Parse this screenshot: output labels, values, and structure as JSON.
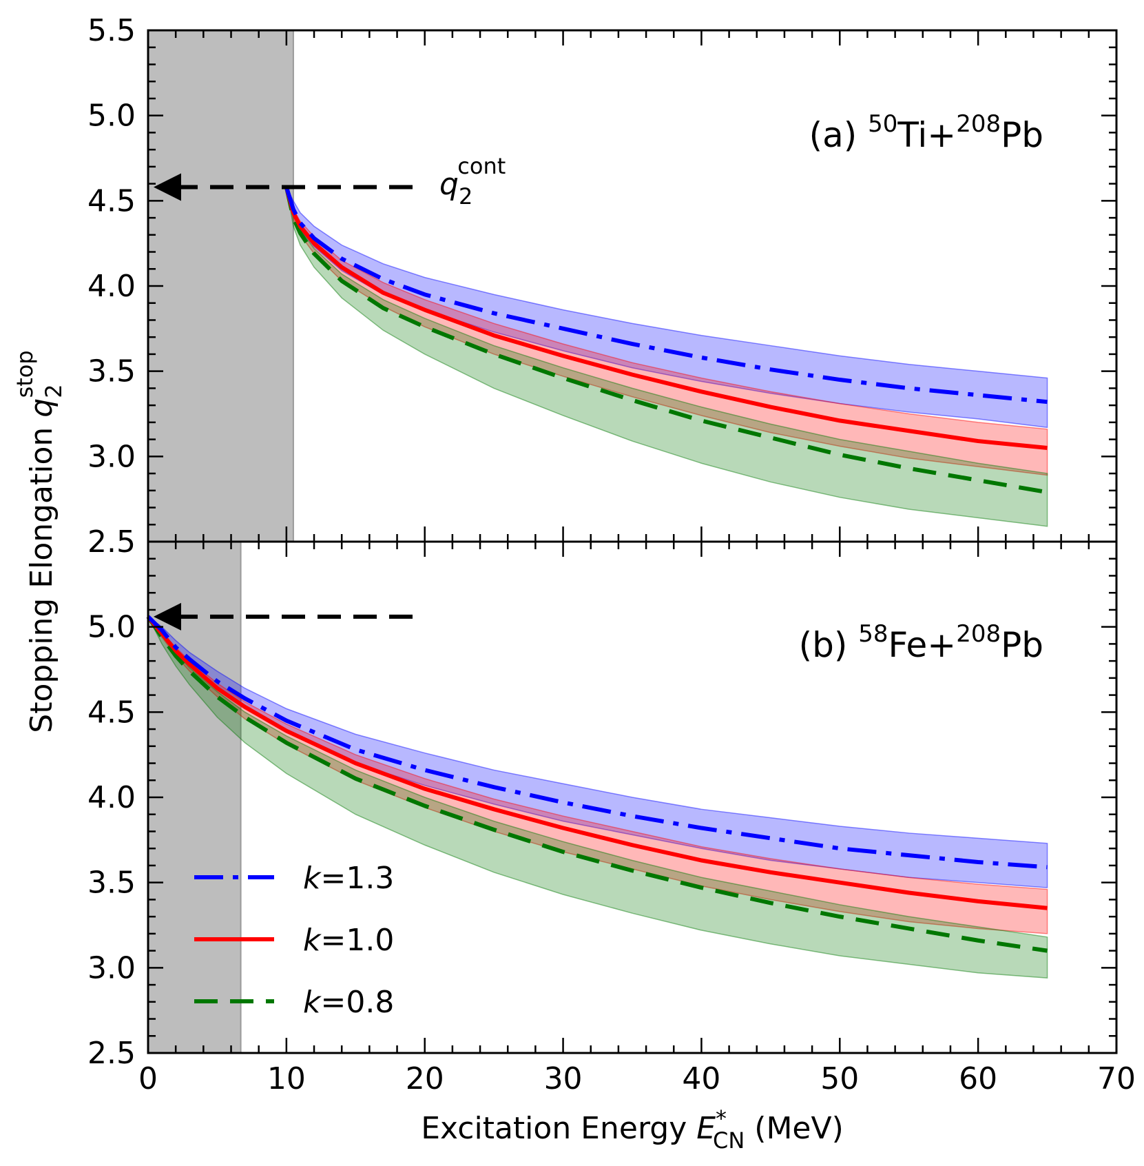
{
  "chart_data": {
    "type": "line",
    "title": "",
    "xlabel": {
      "prefix": "Excitation Energy ",
      "symbol": "E",
      "sup": "*",
      "sub": "CN",
      "suffix": " (MeV)"
    },
    "ylabel": {
      "prefix": "Stopping Elongation ",
      "symbol": "q",
      "sub": "2",
      "sup": "stop"
    },
    "xlim": [
      0,
      70
    ],
    "x_ticks": [
      0,
      10,
      20,
      30,
      40,
      50,
      60,
      70
    ],
    "x_tick_labels": [
      "0",
      "10",
      "20",
      "30",
      "40",
      "50",
      "60",
      "70"
    ],
    "legend": [
      {
        "name": "k=1.3",
        "symbol": "k",
        "text": "=1.3",
        "color": "#0000ff",
        "style": "dash-dot"
      },
      {
        "name": "k=1.0",
        "symbol": "k",
        "text": "=1.0",
        "color": "#ff0000",
        "style": "solid"
      },
      {
        "name": "k=0.8",
        "symbol": "k",
        "text": "=0.8",
        "color": "#007700",
        "style": "dashed"
      }
    ],
    "panels": [
      {
        "id": "a",
        "label": {
          "prefix": "(a) ",
          "iso1": "50",
          "el1": "Ti",
          "plus": "+",
          "iso2": "208",
          "el2": "Pb"
        },
        "ylim": [
          2.5,
          5.5
        ],
        "y_ticks": [
          2.5,
          3.0,
          3.5,
          4.0,
          4.5,
          5.0,
          5.5
        ],
        "y_tick_labels": [
          "2.5",
          "3.0",
          "3.5",
          "4.0",
          "4.5",
          "5.0",
          "5.5"
        ],
        "shaded_region_x": [
          0,
          10.5
        ],
        "q2_cont": 4.58,
        "q2_cont_label": {
          "symbol": "q",
          "sub": "2",
          "sup": "cont"
        },
        "arrow_x_range": [
          0,
          20
        ],
        "start_x": 10,
        "x": [
          10,
          10.5,
          11,
          12,
          14,
          17,
          20,
          25,
          30,
          35,
          40,
          45,
          50,
          55,
          60,
          65
        ],
        "series": [
          {
            "name": "k=1.3",
            "values": [
              4.58,
              4.45,
              4.37,
              4.28,
              4.16,
              4.04,
              3.95,
              3.84,
              3.75,
              3.66,
              3.58,
              3.51,
              3.45,
              3.4,
              3.36,
              3.32
            ],
            "band_upper": [
              4.58,
              4.5,
              4.43,
              4.35,
              4.24,
              4.13,
              4.05,
              3.95,
              3.86,
              3.78,
              3.71,
              3.65,
              3.59,
              3.54,
              3.5,
              3.46
            ],
            "band_lower": [
              4.58,
              4.41,
              4.33,
              4.23,
              4.09,
              3.95,
              3.86,
              3.73,
              3.62,
              3.52,
              3.44,
              3.37,
              3.31,
              3.26,
              3.22,
              3.17
            ]
          },
          {
            "name": "k=1.0",
            "values": [
              4.58,
              4.43,
              4.35,
              4.25,
              4.11,
              3.96,
              3.86,
              3.71,
              3.59,
              3.48,
              3.38,
              3.29,
              3.21,
              3.15,
              3.09,
              3.05
            ],
            "band_upper": [
              4.58,
              4.45,
              4.38,
              4.29,
              4.15,
              4.02,
              3.92,
              3.78,
              3.66,
              3.55,
              3.46,
              3.38,
              3.31,
              3.25,
              3.2,
              3.16
            ],
            "band_lower": [
              4.58,
              4.39,
              4.3,
              4.19,
              4.03,
              3.88,
              3.76,
              3.6,
              3.47,
              3.35,
              3.24,
              3.14,
              3.06,
              2.99,
              2.94,
              2.89
            ]
          },
          {
            "name": "k=0.8",
            "values": [
              4.58,
              4.4,
              4.31,
              4.19,
              4.03,
              3.87,
              3.76,
              3.6,
              3.46,
              3.33,
              3.21,
              3.11,
              3.01,
              2.93,
              2.86,
              2.79
            ],
            "band_upper": [
              4.58,
              4.41,
              4.33,
              4.22,
              4.07,
              3.92,
              3.81,
              3.65,
              3.52,
              3.4,
              3.29,
              3.19,
              3.1,
              3.03,
              2.96,
              2.9
            ],
            "band_lower": [
              4.58,
              4.35,
              4.24,
              4.11,
              3.93,
              3.74,
              3.6,
              3.4,
              3.24,
              3.09,
              2.96,
              2.85,
              2.76,
              2.69,
              2.64,
              2.59
            ]
          }
        ]
      },
      {
        "id": "b",
        "label": {
          "prefix": "(b) ",
          "iso1": "58",
          "el1": "Fe",
          "plus": "+",
          "iso2": "208",
          "el2": "Pb"
        },
        "ylim": [
          2.5,
          5.5
        ],
        "y_ticks": [
          2.5,
          3.0,
          3.5,
          4.0,
          4.5,
          5.0
        ],
        "y_tick_labels": [
          "2.5",
          "3.0",
          "3.5",
          "4.0",
          "4.5",
          "5.0"
        ],
        "shaded_region_x": [
          0,
          6.7
        ],
        "q2_cont": 5.06,
        "arrow_x_range": [
          0,
          20
        ],
        "start_x": 0,
        "x": [
          0,
          1,
          2,
          3,
          5,
          7,
          10,
          15,
          20,
          25,
          30,
          35,
          40,
          45,
          50,
          55,
          60,
          65
        ],
        "series": [
          {
            "name": "k=1.3",
            "values": [
              5.06,
              4.98,
              4.88,
              4.81,
              4.68,
              4.58,
              4.45,
              4.28,
              4.16,
              4.06,
              3.97,
              3.89,
              3.82,
              3.76,
              3.7,
              3.66,
              3.62,
              3.59
            ],
            "band_upper": [
              5.06,
              5.0,
              4.92,
              4.85,
              4.74,
              4.64,
              4.52,
              4.37,
              4.26,
              4.16,
              4.08,
              4.0,
              3.93,
              3.88,
              3.83,
              3.79,
              3.76,
              3.73
            ],
            "band_lower": [
              5.06,
              4.96,
              4.85,
              4.77,
              4.63,
              4.52,
              4.38,
              4.2,
              4.07,
              3.96,
              3.86,
              3.78,
              3.7,
              3.63,
              3.58,
              3.53,
              3.5,
              3.47
            ]
          },
          {
            "name": "k=1.0",
            "values": [
              5.06,
              4.96,
              4.86,
              4.78,
              4.64,
              4.53,
              4.39,
              4.2,
              4.05,
              3.93,
              3.82,
              3.72,
              3.63,
              3.56,
              3.5,
              3.44,
              3.39,
              3.35
            ],
            "band_upper": [
              5.06,
              4.97,
              4.88,
              4.8,
              4.67,
              4.56,
              4.43,
              4.25,
              4.11,
              3.99,
              3.89,
              3.8,
              3.71,
              3.64,
              3.58,
              3.53,
              3.49,
              3.46
            ],
            "band_lower": [
              5.06,
              4.94,
              4.83,
              4.74,
              4.59,
              4.46,
              4.31,
              4.1,
              3.94,
              3.8,
              3.68,
              3.58,
              3.48,
              3.4,
              3.33,
              3.27,
              3.23,
              3.2
            ]
          },
          {
            "name": "k=0.8",
            "values": [
              5.06,
              4.94,
              4.83,
              4.74,
              4.59,
              4.47,
              4.32,
              4.11,
              3.95,
              3.81,
              3.68,
              3.57,
              3.47,
              3.38,
              3.3,
              3.23,
              3.16,
              3.1
            ],
            "band_upper": [
              5.06,
              4.95,
              4.85,
              4.76,
              4.62,
              4.5,
              4.36,
              4.16,
              4.0,
              3.86,
              3.74,
              3.63,
              3.53,
              3.45,
              3.37,
              3.3,
              3.24,
              3.18
            ],
            "band_lower": [
              5.06,
              4.9,
              4.77,
              4.66,
              4.47,
              4.32,
              4.14,
              3.9,
              3.72,
              3.56,
              3.43,
              3.32,
              3.22,
              3.14,
              3.07,
              3.02,
              2.97,
              2.94
            ]
          }
        ]
      }
    ]
  }
}
